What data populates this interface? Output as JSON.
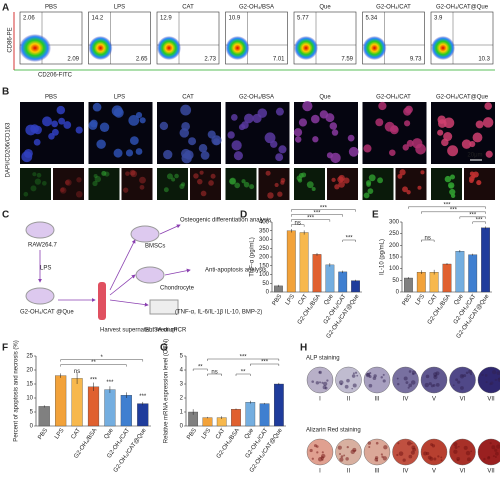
{
  "panels": [
    "A",
    "B",
    "C",
    "D",
    "E",
    "F",
    "G",
    "H"
  ],
  "A": {
    "groups": [
      "PBS",
      "LPS",
      "CAT",
      "G2-OH₄/BSA",
      "Que",
      "G2-OH₄/CAT",
      "G2-OH₄/CAT@Que"
    ],
    "upper_left": [
      "2.06",
      "14.2",
      "12.9",
      "10.9",
      "5.77",
      "5.34",
      "3.9"
    ],
    "lower_right": [
      "2.09",
      "2.65",
      "2.73",
      "7.01",
      "7.59",
      "9.73",
      "10.3"
    ],
    "y_label": "CD86-PE",
    "x_label": "CD206-FITC"
  },
  "B": {
    "groups": [
      "PBS",
      "LPS",
      "CAT",
      "G2-OH₄/BSA",
      "Que",
      "G2-OH₄/CAT",
      "G2-OH₄/CAT@Que"
    ],
    "y_label": "DAPI/CD206/CD163",
    "scale_bar": "20μm"
  },
  "C": {
    "raw": "RAW264.7",
    "lps": "LPS",
    "nano": "G2-OH₄/CAT @Que",
    "harvest": "Harvest supernatant medium",
    "bmsc": "BMSCs",
    "osteo": "Osteogenic differentiation analysis",
    "chondro": "Chondrocyte",
    "apop": "Anti-apoptosis analysis",
    "assay": "(TNF-α, IL-6/IL-1β IL-10, BMP-2)",
    "elisa": "ELISA or qPCR"
  },
  "chart_data": [
    {
      "type": "bar",
      "y_label": "TNF-α (pg/mL)",
      "categories": [
        "PBS",
        "LPS",
        "CAT",
        "G2-OH₄/BSA",
        "Que",
        "G2-OH₄/CAT",
        "G2-OH₄/CAT@Que"
      ],
      "values": [
        35,
        350,
        340,
        215,
        155,
        115,
        65
      ],
      "errors": [
        6,
        10,
        12,
        8,
        10,
        7,
        5
      ],
      "colors": [
        "#808080",
        "#f2a23a",
        "#f7b84d",
        "#e0602f",
        "#74aee0",
        "#3f7fd0",
        "#1f3c9c"
      ],
      "ylim": [
        0,
        400
      ],
      "yticks": [
        0,
        50,
        100,
        150,
        200,
        250,
        300,
        350,
        400
      ],
      "annotations": [
        "ns",
        "***",
        "***",
        "***",
        "***"
      ]
    },
    {
      "type": "bar",
      "y_label": "IL-10 (pg/mL)",
      "categories": [
        "PBS",
        "LPS",
        "CAT",
        "G2-OH₄/BSA",
        "Que",
        "G2-OH₄/CAT",
        "G2-OH₄/CAT@Que"
      ],
      "values": [
        60,
        85,
        85,
        120,
        175,
        160,
        275
      ],
      "errors": [
        4,
        8,
        10,
        4,
        5,
        4,
        6
      ],
      "colors": [
        "#808080",
        "#f2a23a",
        "#f7b84d",
        "#e0602f",
        "#74aee0",
        "#3f7fd0",
        "#1f3c9c"
      ],
      "ylim": [
        0,
        300
      ],
      "yticks": [
        0,
        50,
        100,
        150,
        200,
        250,
        300
      ],
      "annotations": [
        "ns",
        "***",
        "***",
        "***",
        "***"
      ]
    },
    {
      "type": "bar",
      "y_label": "Percent of apoptosis and necrosis (%)",
      "categories": [
        "PBS",
        "LPS",
        "CAT",
        "G2-OH₄/BSA",
        "Que",
        "G2-OH₄/CAT",
        "G2-OH₄/CAT@Que"
      ],
      "values": [
        7,
        18,
        17,
        14,
        13,
        11,
        8
      ],
      "errors": [
        0.4,
        0.8,
        2,
        1.5,
        1.2,
        1,
        0.6
      ],
      "colors": [
        "#808080",
        "#f2a23a",
        "#f7b84d",
        "#e0602f",
        "#74aee0",
        "#3f7fd0",
        "#1f3c9c"
      ],
      "ylim": [
        0,
        25
      ],
      "yticks": [
        0,
        5,
        10,
        15,
        20,
        25
      ],
      "annotations": [
        "ns",
        "***",
        "***",
        "***",
        "**",
        "*"
      ]
    },
    {
      "type": "bar",
      "y_label": "Relative mRNA expression level (OCN)",
      "categories": [
        "PBS",
        "LPS",
        "CAT",
        "G2-OH₄/BSA",
        "Que",
        "G2-OH₄/CAT",
        "G2-OH₄/CAT@Que"
      ],
      "values": [
        1.0,
        0.6,
        0.6,
        1.2,
        1.7,
        1.6,
        3.0
      ],
      "errors": [
        0.2,
        0.05,
        0.1,
        0.05,
        0.1,
        0.05,
        0.08
      ],
      "colors": [
        "#808080",
        "#f2a23a",
        "#f7b84d",
        "#e0602f",
        "#74aee0",
        "#3f7fd0",
        "#1f3c9c"
      ],
      "ylim": [
        0,
        5
      ],
      "yticks": [
        0,
        1,
        2,
        3,
        4,
        5
      ],
      "annotations": [
        "**",
        "***",
        "ns",
        "**",
        "***"
      ]
    }
  ],
  "H": {
    "rows": [
      "ALP staining",
      "Alizarin Red staining"
    ],
    "groups": [
      "I",
      "II",
      "III",
      "IV",
      "V",
      "VI",
      "VII"
    ]
  }
}
